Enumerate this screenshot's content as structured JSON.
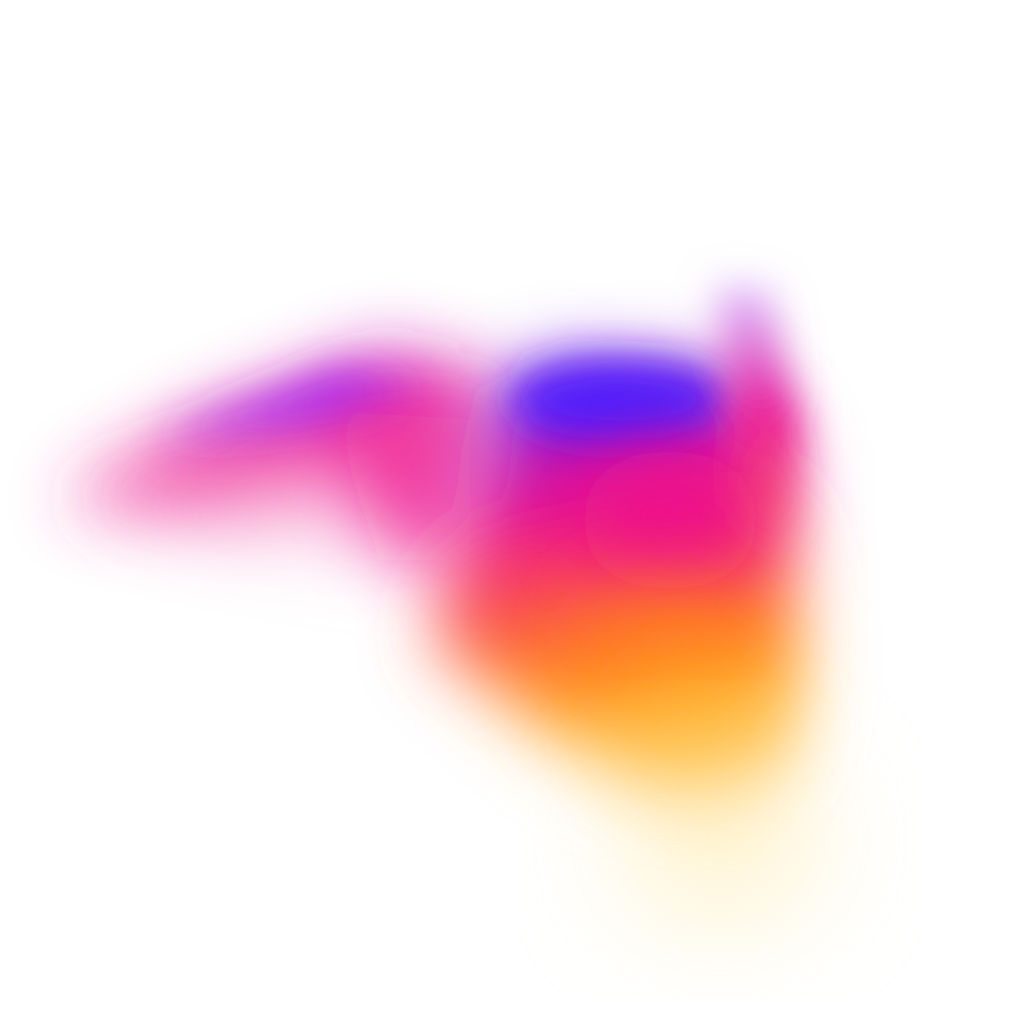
{
  "artwork": {
    "subject": "abstract-gradient-wave",
    "colors": {
      "background": "#ffffff",
      "violet": "#9a2cff",
      "blue": "#4a1cff",
      "magenta": "#ee0f8c",
      "orange": "#ff6a2c",
      "yellow": "#ffb224",
      "pale_yellow": "#ffe9a8"
    }
  }
}
